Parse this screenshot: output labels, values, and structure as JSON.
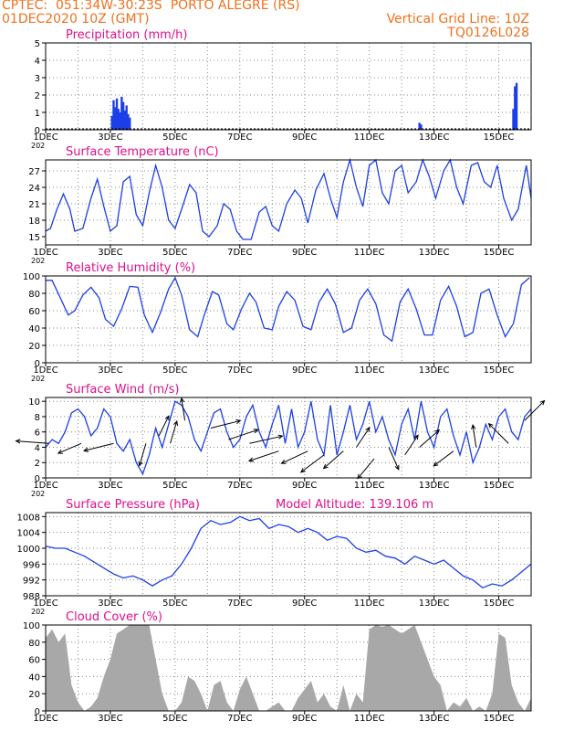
{
  "header": {
    "line1": "CPTEC:  051:34W-30:23S  PORTO ALEGRE (RS)",
    "line2": "01DEC2020 10Z (GMT)",
    "grid_note": "Vertical Grid Line: 10Z",
    "code": "TQ0126L028"
  },
  "x_axis": {
    "labels": [
      "1DEC",
      "3DEC",
      "5DEC",
      "7DEC",
      "9DEC",
      "11DEC",
      "13DEC",
      "15DEC"
    ],
    "label_days": [
      0,
      2,
      4,
      6,
      8,
      10,
      12,
      14
    ],
    "range_days": [
      0,
      15
    ],
    "year_stub": "202"
  },
  "colors": {
    "line": "#1c3fe6",
    "fill": "#1c3fe6",
    "cloud": "#a8a8a8",
    "title": "#e0108a",
    "header": "#f0701c"
  },
  "chart_data": [
    {
      "type": "bar",
      "title": "Precipitation (mm/h)",
      "ylim": [
        0,
        5
      ],
      "yticks": [
        0,
        1,
        2,
        3,
        4,
        5
      ],
      "x": [
        2.05,
        2.1,
        2.15,
        2.2,
        2.25,
        2.3,
        2.35,
        2.4,
        2.45,
        2.5,
        2.55,
        2.6,
        11.55,
        11.6,
        14.45,
        14.5,
        14.55
      ],
      "values": [
        0.8,
        1.7,
        1.3,
        1.8,
        1.2,
        1.0,
        1.9,
        1.6,
        1.1,
        1.4,
        0.9,
        0.7,
        0.4,
        0.3,
        1.2,
        2.5,
        2.7
      ]
    },
    {
      "type": "line",
      "title": "Surface Temperature (nC)",
      "ylim": [
        13.5,
        29
      ],
      "yticks": [
        15,
        18,
        21,
        24,
        27
      ],
      "x": [
        0,
        0.15,
        0.35,
        0.55,
        0.75,
        0.9,
        1.15,
        1.4,
        1.6,
        1.8,
        2.0,
        2.2,
        2.4,
        2.6,
        2.8,
        3.0,
        3.2,
        3.4,
        3.6,
        3.8,
        4.0,
        4.2,
        4.45,
        4.65,
        4.85,
        5.05,
        5.3,
        5.5,
        5.7,
        5.9,
        6.1,
        6.35,
        6.6,
        6.8,
        7.0,
        7.2,
        7.45,
        7.7,
        7.9,
        8.1,
        8.35,
        8.6,
        8.8,
        9.0,
        9.2,
        9.4,
        9.6,
        9.8,
        10.0,
        10.2,
        10.4,
        10.6,
        10.8,
        11.0,
        11.2,
        11.45,
        11.65,
        11.85,
        12.05,
        12.3,
        12.5,
        12.7,
        12.9,
        13.15,
        13.35,
        13.55,
        13.75,
        13.95,
        14.15,
        14.4,
        14.6,
        14.85,
        15.0
      ],
      "values": [
        16,
        16.5,
        20,
        22.8,
        20,
        16,
        16.5,
        22,
        25.5,
        20.5,
        16,
        17,
        25,
        26,
        19,
        17,
        23,
        28,
        24,
        18,
        16.5,
        20,
        24.5,
        23,
        16,
        15,
        17,
        21,
        20,
        16,
        14.5,
        14.5,
        19.5,
        20.5,
        17,
        16,
        21,
        23.5,
        22,
        17.5,
        23.5,
        26.5,
        22,
        18.5,
        25,
        29,
        24,
        20.5,
        28,
        29,
        23,
        21,
        27,
        28,
        23,
        25,
        29,
        26,
        22,
        27,
        29,
        24,
        21,
        28,
        28.5,
        25,
        24,
        28,
        22,
        18,
        20,
        28,
        22
      ]
    },
    {
      "type": "line",
      "title": "Relative Humidity (%)",
      "ylim": [
        0,
        100
      ],
      "yticks": [
        0,
        20,
        40,
        60,
        80,
        100
      ],
      "x": [
        0,
        0.2,
        0.45,
        0.7,
        0.9,
        1.15,
        1.4,
        1.65,
        1.85,
        2.1,
        2.35,
        2.6,
        2.85,
        3.05,
        3.3,
        3.55,
        3.8,
        4.0,
        4.2,
        4.45,
        4.7,
        4.9,
        5.15,
        5.35,
        5.6,
        5.8,
        6.05,
        6.3,
        6.5,
        6.75,
        7.0,
        7.2,
        7.45,
        7.7,
        7.95,
        8.2,
        8.45,
        8.7,
        8.95,
        9.2,
        9.45,
        9.7,
        9.95,
        10.2,
        10.45,
        10.7,
        10.95,
        11.2,
        11.45,
        11.7,
        11.95,
        12.2,
        12.45,
        12.7,
        12.95,
        13.2,
        13.45,
        13.7,
        13.95,
        14.2,
        14.45,
        14.7,
        14.95
      ],
      "values": [
        95,
        95,
        75,
        55,
        60,
        78,
        87,
        75,
        50,
        42,
        62,
        88,
        87,
        55,
        35,
        58,
        85,
        98,
        78,
        38,
        30,
        55,
        82,
        78,
        45,
        38,
        62,
        80,
        70,
        40,
        38,
        65,
        82,
        72,
        42,
        38,
        70,
        85,
        68,
        35,
        40,
        72,
        85,
        68,
        32,
        25,
        70,
        85,
        62,
        32,
        32,
        72,
        88,
        65,
        30,
        35,
        80,
        85,
        55,
        30,
        45,
        90,
        98
      ]
    },
    {
      "type": "line",
      "title": "Surface Wind (m/s)",
      "ylim": [
        0,
        10.5
      ],
      "yticks": [
        0,
        2,
        4,
        6,
        8,
        10
      ],
      "x": [
        0,
        0.2,
        0.4,
        0.6,
        0.8,
        1.0,
        1.2,
        1.4,
        1.6,
        1.8,
        2.0,
        2.2,
        2.4,
        2.6,
        2.8,
        3.0,
        3.2,
        3.4,
        3.6,
        3.8,
        4.0,
        4.2,
        4.4,
        4.6,
        4.8,
        5.0,
        5.2,
        5.4,
        5.6,
        5.8,
        6.0,
        6.2,
        6.4,
        6.6,
        6.8,
        7.0,
        7.2,
        7.4,
        7.6,
        7.8,
        8.0,
        8.2,
        8.4,
        8.6,
        8.8,
        9.0,
        9.2,
        9.4,
        9.6,
        9.8,
        10.0,
        10.2,
        10.4,
        10.6,
        10.8,
        11.0,
        11.2,
        11.4,
        11.6,
        11.8,
        12.0,
        12.2,
        12.4,
        12.6,
        12.8,
        13.0,
        13.2,
        13.4,
        13.6,
        13.8,
        14.0,
        14.2,
        14.4,
        14.6,
        14.8,
        15.0
      ],
      "values": [
        4,
        5,
        4.5,
        6,
        8.5,
        9,
        8,
        5.5,
        6.5,
        9,
        8,
        4.5,
        3.5,
        5,
        2,
        0.5,
        3,
        6.5,
        4,
        7,
        10,
        9.5,
        8,
        5,
        3.5,
        6,
        8.5,
        9,
        6,
        4,
        5,
        8,
        9.5,
        6,
        4,
        7,
        9.5,
        4.5,
        9,
        4,
        6,
        10,
        5,
        3,
        9.5,
        3,
        6,
        9.5,
        5,
        7,
        10,
        6,
        8,
        5,
        3,
        7,
        9,
        5,
        10,
        6,
        4,
        8,
        9,
        5.5,
        3,
        6,
        2,
        4,
        7,
        5,
        8,
        9,
        6,
        5,
        8,
        9
      ]
    },
    {
      "type": "line",
      "title": "Surface Pressure (hPa)",
      "annotation": "Model Altitude: 139.106 m",
      "ylim": [
        988,
        1009
      ],
      "yticks": [
        988,
        992,
        996,
        1000,
        1004,
        1008
      ],
      "x": [
        0,
        0.3,
        0.6,
        0.9,
        1.2,
        1.5,
        1.8,
        2.1,
        2.4,
        2.7,
        3.0,
        3.3,
        3.6,
        3.9,
        4.2,
        4.5,
        4.8,
        5.1,
        5.4,
        5.7,
        6.0,
        6.3,
        6.6,
        6.9,
        7.2,
        7.5,
        7.8,
        8.1,
        8.4,
        8.7,
        9.0,
        9.3,
        9.6,
        9.9,
        10.2,
        10.5,
        10.8,
        11.1,
        11.4,
        11.7,
        12.0,
        12.3,
        12.6,
        12.9,
        13.2,
        13.5,
        13.8,
        14.1,
        14.4,
        14.7,
        15.0
      ],
      "values": [
        1000.5,
        1000,
        1000,
        999,
        998,
        996.5,
        995,
        993.5,
        992.5,
        993,
        992,
        990.5,
        992,
        993,
        996,
        1000,
        1005,
        1007,
        1006,
        1006.5,
        1008,
        1007,
        1007.5,
        1005,
        1006,
        1005.5,
        1004,
        1005,
        1004,
        1002,
        1003,
        1002.5,
        1000,
        999,
        999.5,
        998,
        997.5,
        996,
        998,
        997,
        996,
        997,
        995,
        993,
        992,
        990,
        991,
        990.5,
        992,
        994,
        996
      ]
    },
    {
      "type": "area",
      "title": "Cloud Cover (%)",
      "ylim": [
        0,
        100
      ],
      "yticks": [
        0,
        20,
        40,
        60,
        80,
        100
      ],
      "x": [
        0,
        0.2,
        0.4,
        0.6,
        0.8,
        1.0,
        1.2,
        1.4,
        1.6,
        1.8,
        2.0,
        2.2,
        2.4,
        2.6,
        2.8,
        3.0,
        3.2,
        3.4,
        3.6,
        3.8,
        4.0,
        4.2,
        4.4,
        4.6,
        4.8,
        5.0,
        5.2,
        5.4,
        5.6,
        5.8,
        6.0,
        6.2,
        6.4,
        6.6,
        6.8,
        7.0,
        7.2,
        7.4,
        7.6,
        7.8,
        8.0,
        8.2,
        8.4,
        8.6,
        8.8,
        9.0,
        9.2,
        9.4,
        9.6,
        9.8,
        10.0,
        10.2,
        10.4,
        10.6,
        10.8,
        11.0,
        11.2,
        11.4,
        11.6,
        11.8,
        12.0,
        12.2,
        12.4,
        12.6,
        12.8,
        13.0,
        13.2,
        13.4,
        13.6,
        13.8,
        14.0,
        14.2,
        14.4,
        14.6,
        14.8,
        15.0
      ],
      "values": [
        85,
        95,
        80,
        90,
        30,
        10,
        0,
        5,
        15,
        40,
        60,
        90,
        95,
        100,
        100,
        100,
        100,
        60,
        20,
        0,
        0,
        10,
        40,
        35,
        20,
        0,
        30,
        35,
        10,
        0,
        25,
        40,
        20,
        0,
        0,
        5,
        10,
        0,
        0,
        15,
        25,
        35,
        10,
        20,
        5,
        0,
        30,
        0,
        20,
        10,
        95,
        100,
        98,
        100,
        95,
        90,
        95,
        100,
        80,
        60,
        40,
        30,
        0,
        10,
        5,
        15,
        0,
        5,
        0,
        20,
        90,
        85,
        30,
        10,
        0,
        15
      ]
    }
  ],
  "wind_vectors": {
    "x": [
      0.1,
      1.1,
      2.1,
      3.1,
      3.5,
      3.85,
      4.3,
      5.1,
      5.65,
      6.3,
      7.2,
      8.1,
      8.6,
      9.2,
      9.6,
      10.15,
      10.6,
      11.1,
      11.55,
      12.6,
      13.3,
      14.3,
      14.8
    ],
    "speed": [
      4.5,
      4.5,
      4.5,
      4.5,
      5.5,
      4.5,
      7.5,
      6.5,
      5,
      4.5,
      3.5,
      3.5,
      3,
      3.5,
      4,
      2.5,
      4,
      3,
      4,
      3.5,
      4,
      4.5,
      7.5
    ],
    "dx": [
      -1,
      -0.7,
      -0.9,
      -0.2,
      0.3,
      0.2,
      -0.1,
      0.9,
      0.9,
      1,
      -0.9,
      -0.8,
      -0.7,
      -0.6,
      0.4,
      -0.5,
      0.3,
      0.4,
      0.6,
      -0.6,
      -0.1,
      -0.6,
      0.6
    ],
    "dy": [
      0.1,
      -0.4,
      -0.3,
      -0.9,
      0.8,
      0.9,
      0.9,
      0.3,
      0.4,
      0.3,
      -0.4,
      -0.5,
      -0.7,
      -0.7,
      0.8,
      -0.8,
      -0.9,
      0.8,
      0.7,
      -0.6,
      0.9,
      0.8,
      0.8
    ]
  }
}
